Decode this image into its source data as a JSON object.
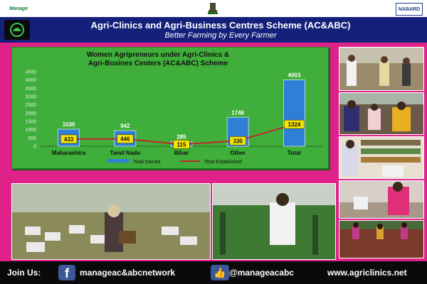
{
  "header": {
    "left_logo_text": "Manage",
    "right_logo_text": "NABARD",
    "emblem_icon": "national-emblem-icon",
    "title": "Agri-Clinics and Agri-Business Centres Scheme (AC&ABC)",
    "subtitle": "Better Farming  by Every Farmer"
  },
  "chart_data": {
    "type": "bar",
    "title": "Women Agripreneurs under Agri-Clinics & Agri-Busines Centers (AC&ABC) Scheme",
    "categories": [
      "Maharashtra",
      "Tamil Nadu",
      "Bihar",
      "Other",
      "Total"
    ],
    "series": [
      {
        "name": "Total trained",
        "type": "bar",
        "values": [
          1030,
          942,
          285,
          1746,
          4003
        ],
        "color": "#2f7fd6"
      },
      {
        "name": "Total Established",
        "type": "line",
        "values": [
          433,
          446,
          115,
          330,
          1324
        ],
        "color": "#c0282d"
      }
    ],
    "y_ticks": [
      "0",
      "500",
      "1000",
      "1500",
      "2000",
      "2500",
      "3000",
      "3500",
      "4000",
      "4500"
    ],
    "ylim": [
      0,
      4500
    ],
    "legend_position": "bottom",
    "grid": false
  },
  "photos": [
    {
      "name": "photo-farmers-field",
      "icon": "people-photo-icon"
    },
    {
      "name": "photo-training-class",
      "icon": "people-photo-icon"
    },
    {
      "name": "photo-agri-shop",
      "icon": "shop-photo-icon"
    },
    {
      "name": "photo-worker-pesticide",
      "icon": "people-photo-icon"
    },
    {
      "name": "photo-field-work",
      "icon": "field-photo-icon"
    },
    {
      "name": "photo-beekeeping",
      "icon": "beehive-photo-icon"
    },
    {
      "name": "photo-greenhouse",
      "icon": "greenhouse-photo-icon"
    }
  ],
  "footer": {
    "join_label": "Join Us:",
    "facebook_page": "manageac&abcnetwork",
    "handle": "@manageacabc",
    "website": "www.agriclinics.net"
  },
  "colors": {
    "background": "#e0218a",
    "banner": "#14207a",
    "chart_bg": "#3fae3a",
    "bar": "#2f7fd6",
    "line": "#c0282d",
    "label_box": "#f5e400"
  }
}
